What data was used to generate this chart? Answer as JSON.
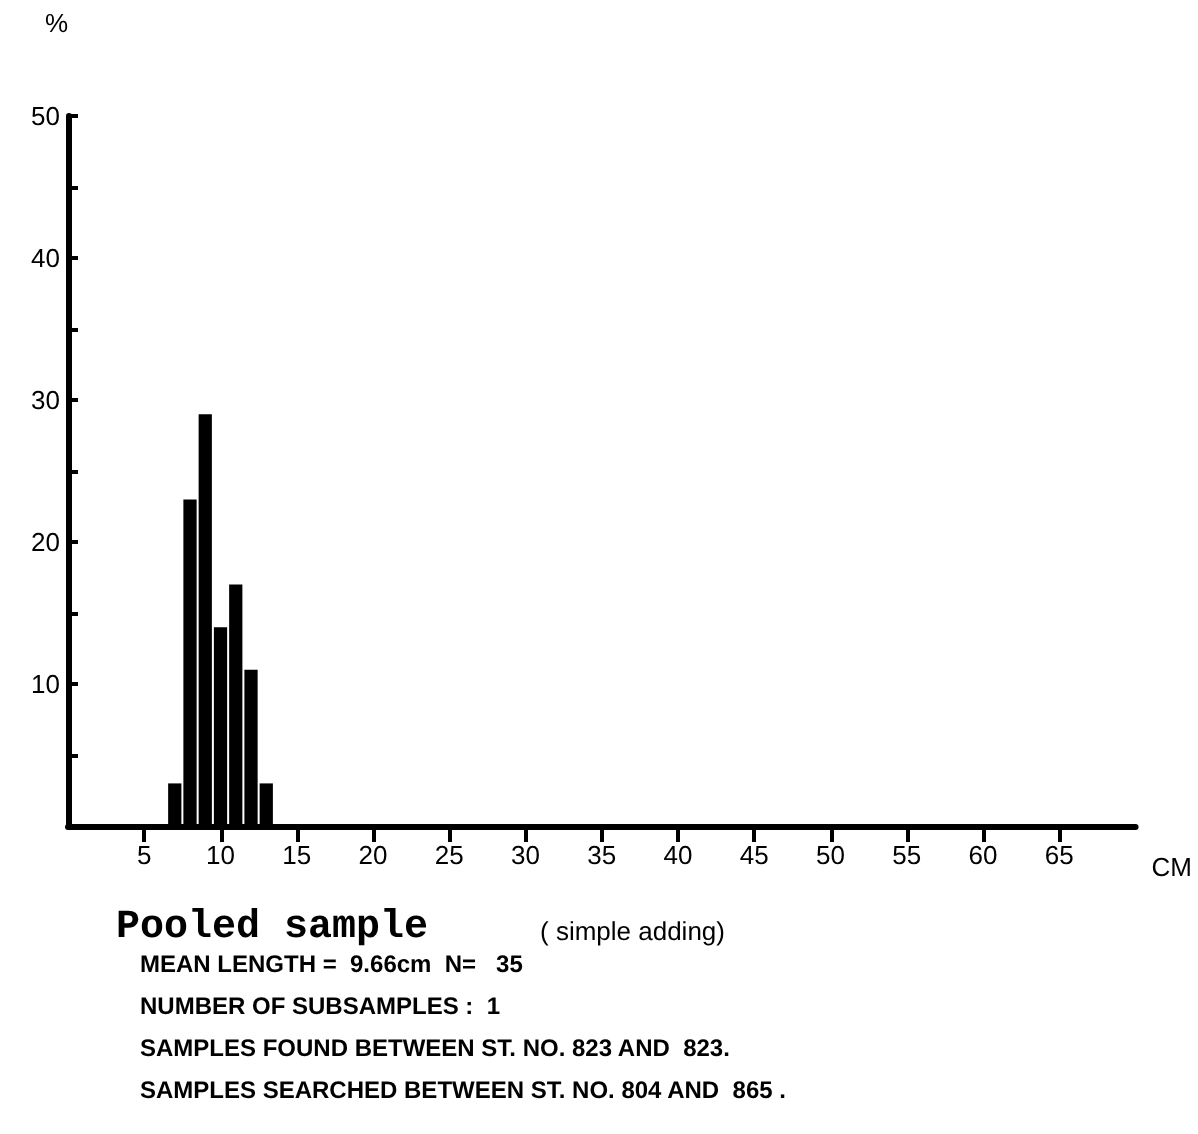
{
  "chart_data": {
    "type": "histogram",
    "title": "Pooled sample",
    "subtitle": "( simple adding)",
    "xlabel": "CM",
    "ylabel": "%",
    "bins": [
      6.5,
      7.5,
      8.5,
      9.5,
      10.5,
      11.5,
      12.5,
      13.5
    ],
    "values": [
      3,
      23,
      29,
      14,
      17,
      11,
      3
    ],
    "color": "#000000",
    "xlim": [
      0,
      70
    ],
    "xticks": [
      5,
      10,
      15,
      20,
      25,
      30,
      35,
      40,
      45,
      50,
      55,
      60,
      65
    ],
    "ylim": [
      0,
      50
    ],
    "yticks": [
      {
        "value": 5,
        "label": null
      },
      10,
      {
        "value": 15,
        "label": null
      },
      20,
      {
        "value": 25,
        "label": null
      },
      30,
      {
        "value": 35,
        "label": null
      },
      40,
      {
        "value": 45,
        "label": null
      },
      50
    ],
    "grid": false,
    "annotations": [
      "MEAN LENGTH =  9.66cm  N=   35",
      "NUMBER OF SUBSAMPLES :  1",
      "SAMPLES FOUND BETWEEN ST. NO. 823 AND  823.",
      "SAMPLES SEARCHED BETWEEN ST. NO. 804 AND  865 ."
    ]
  }
}
